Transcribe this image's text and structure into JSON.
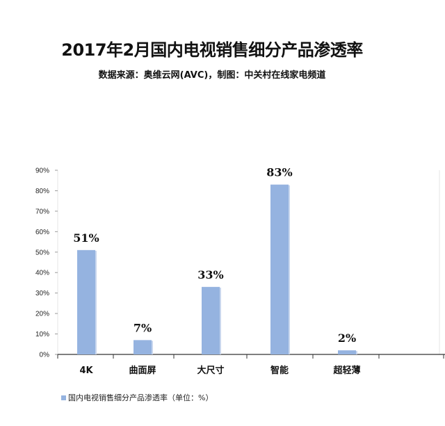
{
  "title": "2017年2月国内电视销售细分产品渗透率",
  "subtitle": "数据来源：奥维云网(AVC)，制图：中关村在线家电频道",
  "colors": {
    "bar": "#95b3e0",
    "bar_shadow": "#c9d7ee",
    "grid": "#e6e6e6",
    "axis": "#999999"
  },
  "chart_data": {
    "type": "bar",
    "title": "2017年2月国内电视销售细分产品渗透率",
    "subtitle": "数据来源：奥维云网(AVC)，制图：中关村在线家电频道",
    "categories": [
      "4K",
      "曲面屏",
      "大尺寸",
      "智能",
      "超轻薄"
    ],
    "series": [
      {
        "name": "国内电视销售细分产品渗透率（单位：%）",
        "values": [
          51,
          7,
          33,
          83,
          2
        ]
      }
    ],
    "data_labels": [
      "51%",
      "7%",
      "33%",
      "83%",
      "2%"
    ],
    "yticks": [
      "0%",
      "10%",
      "20%",
      "30%",
      "40%",
      "50%",
      "60%",
      "70%",
      "80%",
      "90%"
    ],
    "ylim": [
      0,
      90
    ],
    "grid": false,
    "legend": "bottom-left"
  }
}
